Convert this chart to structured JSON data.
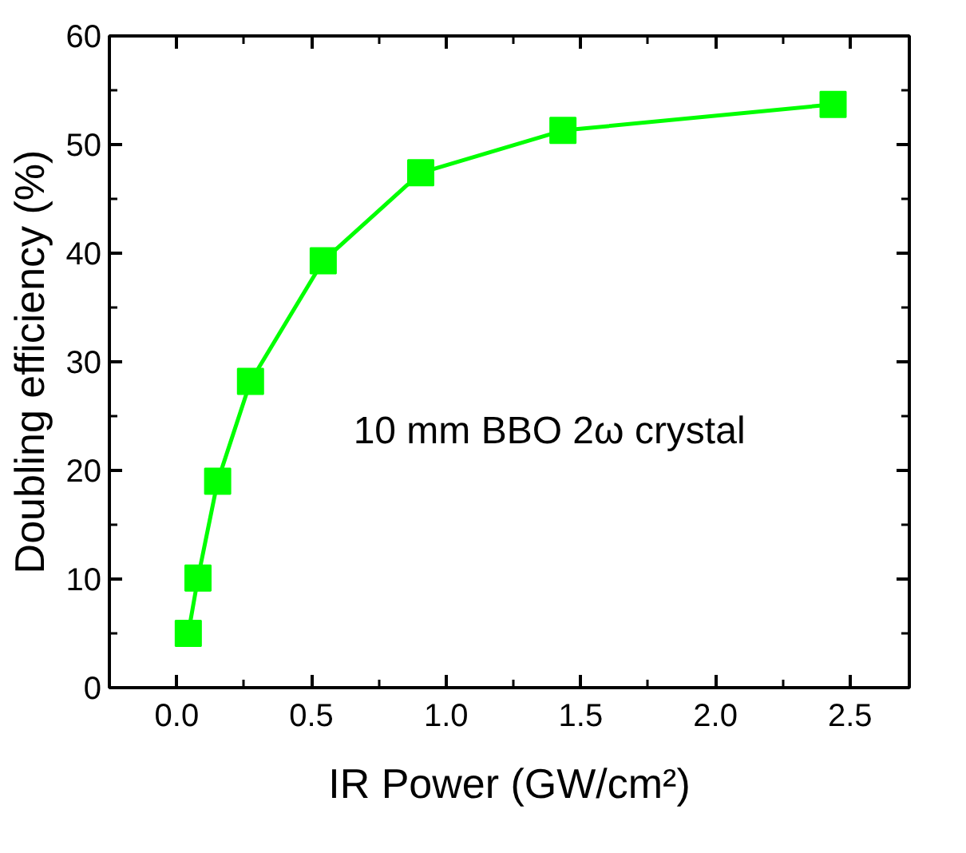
{
  "chart_data": {
    "type": "line",
    "xlabel": "IR Power (GW/cm²)",
    "ylabel": "Doubling efficiency (%)",
    "x": [
      0.043,
      0.079,
      0.152,
      0.274,
      0.544,
      0.906,
      1.434,
      2.437
    ],
    "series": [
      {
        "color": "#00ff00",
        "values": [
          5.0,
          10.1,
          19.0,
          28.2,
          39.3,
          47.4,
          51.3,
          53.7
        ]
      }
    ],
    "xlim": [
      -0.25,
      2.72
    ],
    "ylim": [
      0,
      60
    ],
    "xticks": [
      {
        "value": 0,
        "label": "0.0"
      },
      0.5,
      {
        "value": 1,
        "label": "1.0"
      },
      1.5,
      {
        "value": 2,
        "label": "2.0"
      },
      2.5
    ],
    "yticks": [
      0,
      10,
      20,
      30,
      40,
      50,
      60
    ],
    "annotations": [
      "10 mm BBO 2ω crystal"
    ],
    "marker": "square",
    "line_style": "solid"
  }
}
